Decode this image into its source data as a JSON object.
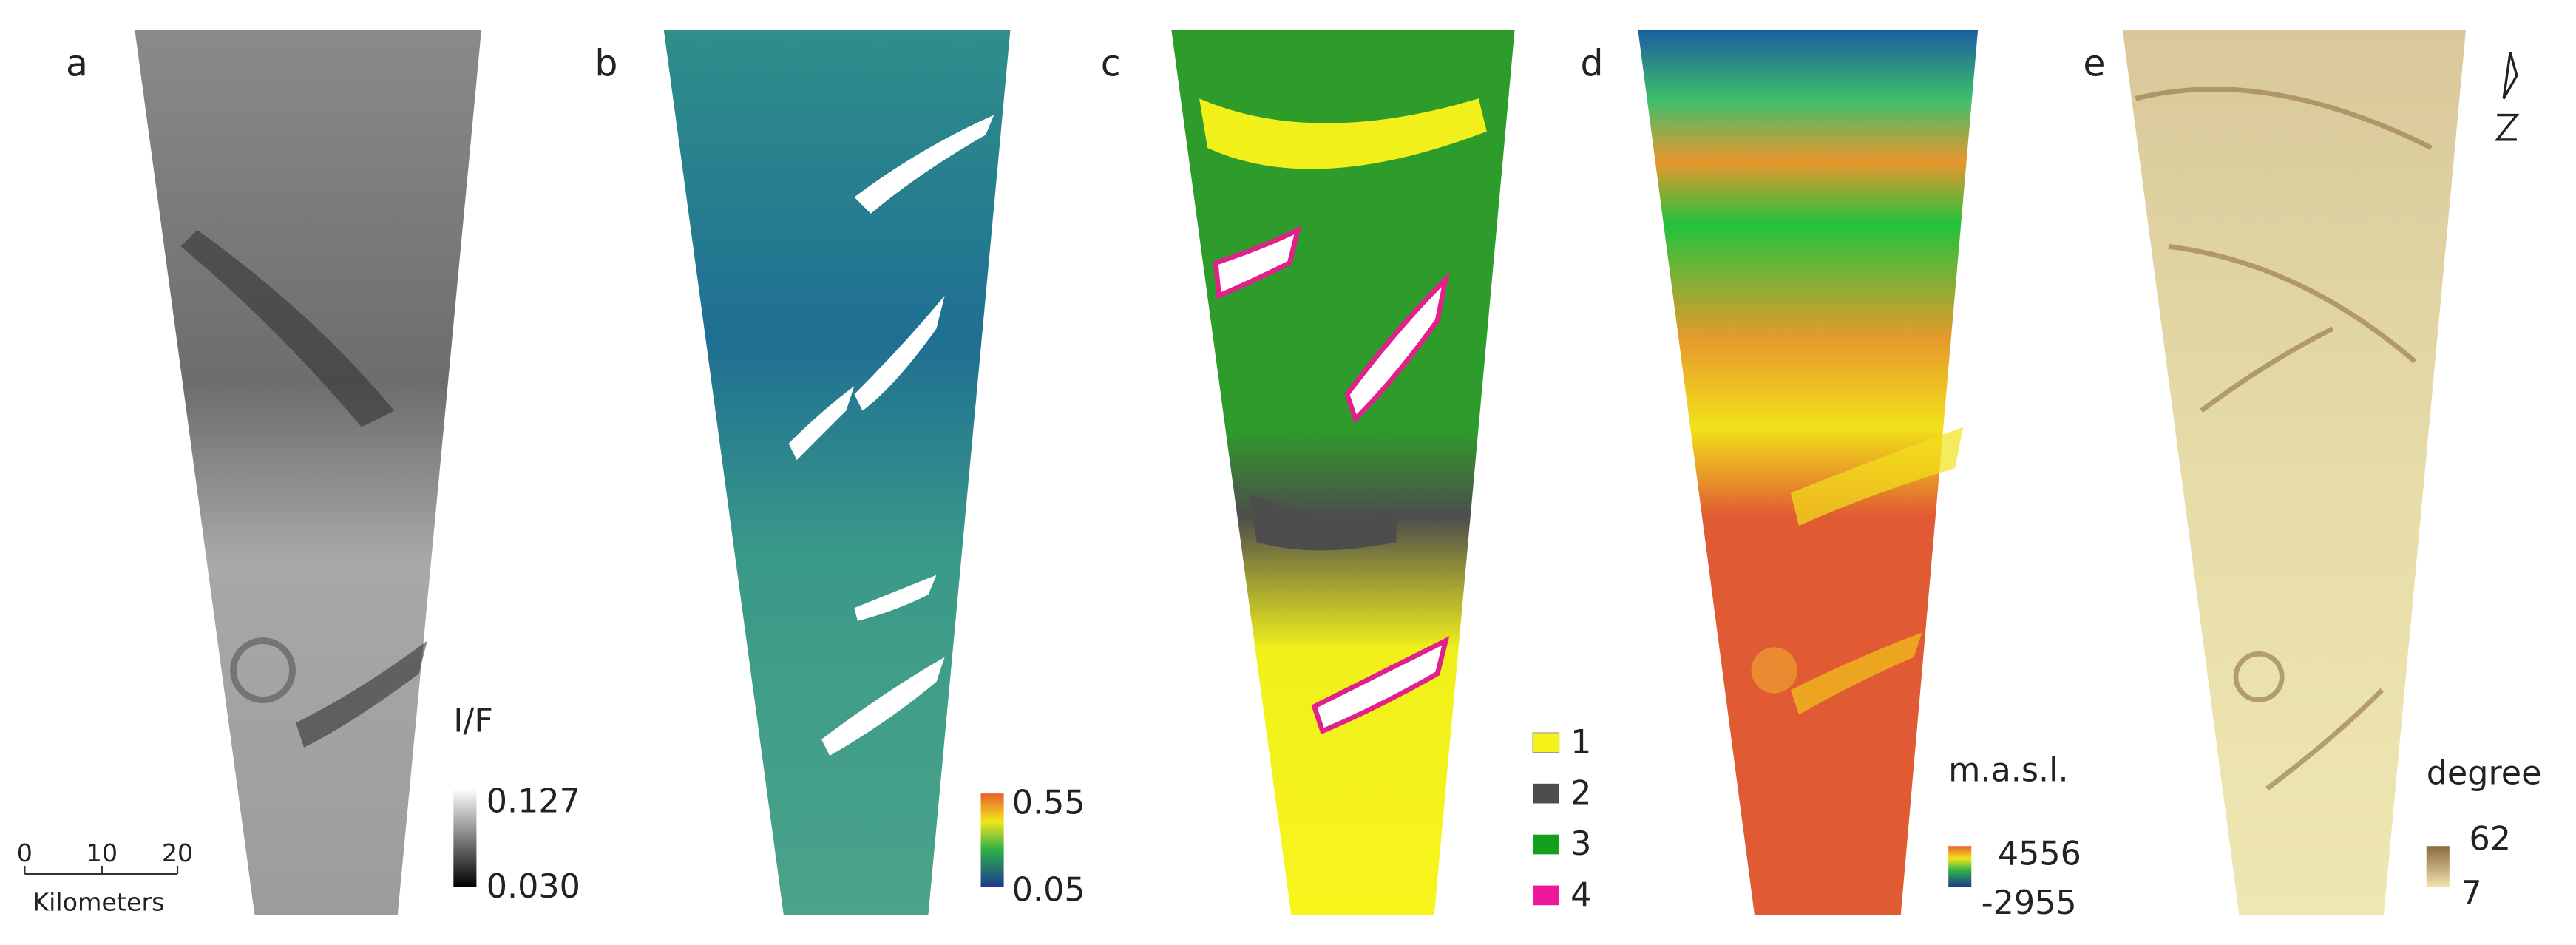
{
  "panels": [
    {
      "label": "a",
      "legend_title": "I/F",
      "legend_max": "0.127",
      "legend_min": "0.030"
    },
    {
      "label": "b",
      "legend_max": "0.55",
      "legend_min": "0.05"
    },
    {
      "label": "c",
      "classes": [
        "1",
        "2",
        "3",
        "4"
      ]
    },
    {
      "label": "d",
      "legend_title": "m.a.s.l.",
      "legend_max": "4556",
      "legend_min": "-2955"
    },
    {
      "label": "e",
      "legend_title": "degree",
      "legend_max": "62",
      "legend_min": "7"
    }
  ],
  "scale_bar": {
    "ticks": [
      "0",
      "10",
      "20"
    ],
    "unit": "Kilometers"
  }
}
